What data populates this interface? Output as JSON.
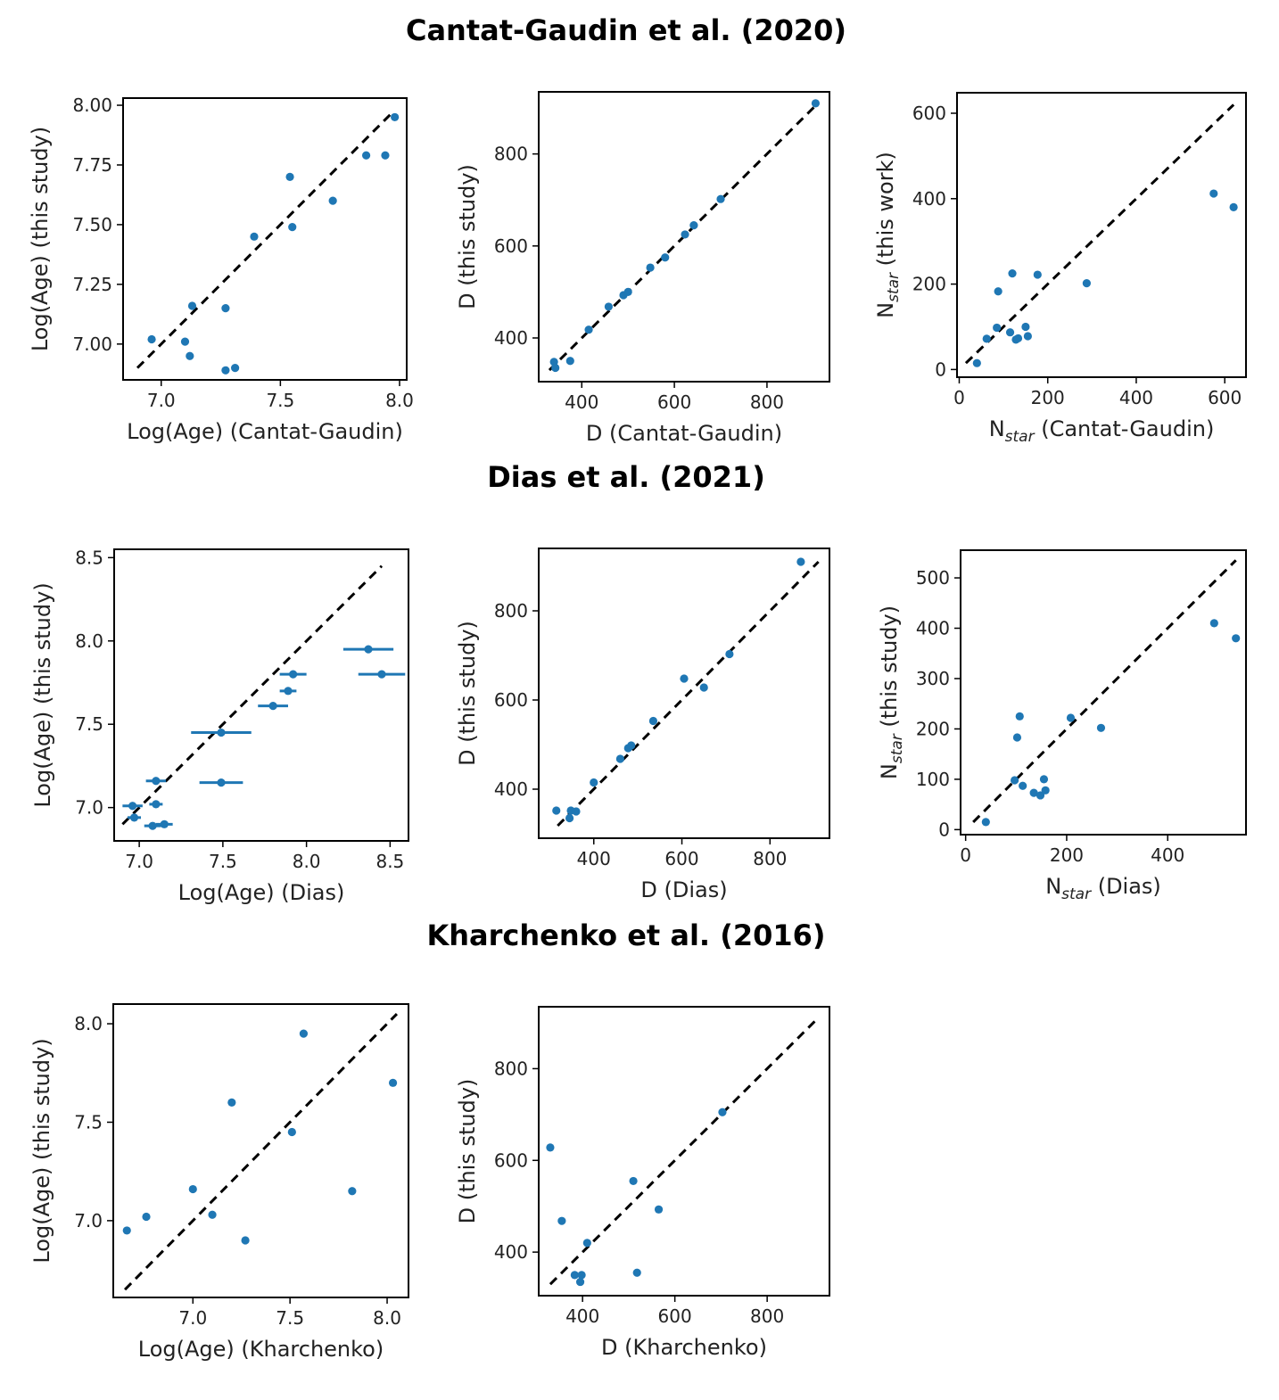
{
  "row_titles": [
    "Cantat-Gaudin et al. (2020)",
    "Dias et al. (2021)",
    "Kharchenko et al. (2016)"
  ],
  "colors": {
    "points": "#1f77b4",
    "reference_line": "#000000"
  },
  "chart_data": [
    {
      "id": "cg-age",
      "type": "scatter",
      "xlabel": "Log(Age) (Cantat-Gaudin)",
      "ylabel": "Log(Age) (this study)",
      "xlim": [
        6.84,
        8.03
      ],
      "ylim": [
        6.85,
        8.03
      ],
      "xticks": [
        7.0,
        7.5,
        8.0
      ],
      "xtick_labels": [
        "7.0",
        "7.5",
        "8.0"
      ],
      "yticks": [
        7.0,
        7.25,
        7.5,
        7.75,
        8.0
      ],
      "ytick_labels": [
        "7.00",
        "7.25",
        "7.50",
        "7.75",
        "8.00"
      ],
      "reference_line": [
        [
          6.9,
          6.9
        ],
        [
          7.97,
          7.97
        ]
      ],
      "x": [
        6.96,
        7.1,
        7.12,
        7.13,
        7.27,
        7.27,
        7.31,
        7.39,
        7.54,
        7.55,
        7.72,
        7.86,
        7.94,
        7.98
      ],
      "y": [
        7.02,
        7.01,
        6.95,
        7.16,
        7.15,
        6.89,
        6.9,
        7.45,
        7.7,
        7.49,
        7.6,
        7.79,
        7.79,
        7.95
      ]
    },
    {
      "id": "cg-dist",
      "type": "scatter",
      "xlabel": "D (Cantat-Gaudin)",
      "ylabel": "D (this study)",
      "xlim": [
        307,
        935
      ],
      "ylim": [
        305,
        935
      ],
      "xticks": [
        400,
        600,
        800
      ],
      "xtick_labels": [
        "400",
        "600",
        "800"
      ],
      "yticks": [
        400,
        600,
        800
      ],
      "ytick_labels": [
        "400",
        "600",
        "800"
      ],
      "reference_line": [
        [
          330,
          330
        ],
        [
          910,
          910
        ]
      ],
      "x": [
        340,
        343,
        375,
        415,
        458,
        490,
        500,
        548,
        580,
        623,
        642,
        700,
        905
      ],
      "y": [
        348,
        335,
        350,
        418,
        468,
        493,
        500,
        553,
        575,
        625,
        645,
        702,
        910
      ]
    },
    {
      "id": "cg-nstar",
      "type": "scatter",
      "xlabel": "Nstar (Cantat-Gaudin)",
      "ylabel": "Nstar (this work)",
      "xlim": [
        -5,
        648
      ],
      "ylim": [
        -18,
        648
      ],
      "xticks": [
        0,
        200,
        400,
        600
      ],
      "xtick_labels": [
        "0",
        "200",
        "400",
        "600"
      ],
      "yticks": [
        0,
        200,
        400,
        600
      ],
      "ytick_labels": [
        "0",
        "200",
        "400",
        "600"
      ],
      "reference_line": [
        [
          15,
          15
        ],
        [
          620,
          620
        ]
      ],
      "x": [
        40,
        62,
        85,
        88,
        115,
        120,
        128,
        133,
        150,
        155,
        177,
        288,
        575,
        620
      ],
      "y": [
        15,
        72,
        98,
        183,
        87,
        225,
        70,
        73,
        100,
        78,
        222,
        202,
        412,
        380
      ]
    },
    {
      "id": "dias-age",
      "type": "scatter",
      "xlabel": "Log(Age) (Dias)",
      "ylabel": "Log(Age) (this study)",
      "xlim": [
        6.85,
        8.61
      ],
      "ylim": [
        6.8,
        8.55
      ],
      "xticks": [
        7.0,
        7.5,
        8.0,
        8.5
      ],
      "xtick_labels": [
        "7.0",
        "7.5",
        "8.0",
        "8.5"
      ],
      "yticks": [
        7.0,
        7.5,
        8.0,
        8.5
      ],
      "ytick_labels": [
        "7.0",
        "7.5",
        "8.0",
        "8.5"
      ],
      "reference_line": [
        [
          6.9,
          6.9
        ],
        [
          8.45,
          8.45
        ]
      ],
      "x": [
        6.96,
        6.97,
        7.08,
        7.1,
        7.1,
        7.15,
        7.49,
        7.49,
        7.8,
        7.89,
        7.92,
        8.37,
        8.45
      ],
      "y": [
        7.01,
        6.94,
        6.89,
        7.02,
        7.16,
        6.9,
        7.45,
        7.15,
        7.61,
        7.7,
        7.8,
        7.95,
        7.8
      ],
      "xerr": [
        0.06,
        0.04,
        0.05,
        0.04,
        0.06,
        0.05,
        0.18,
        0.13,
        0.09,
        0.05,
        0.08,
        0.15,
        0.14
      ]
    },
    {
      "id": "dias-dist",
      "type": "scatter",
      "xlabel": "D (Dias)",
      "ylabel": "D (this study)",
      "xlim": [
        275,
        935
      ],
      "ylim": [
        290,
        940
      ],
      "xticks": [
        400,
        600,
        800
      ],
      "xtick_labels": [
        "400",
        "600",
        "800"
      ],
      "yticks": [
        400,
        600,
        800
      ],
      "ytick_labels": [
        "400",
        "600",
        "800"
      ],
      "reference_line": [
        [
          318,
          318
        ],
        [
          910,
          910
        ]
      ],
      "x": [
        315,
        345,
        348,
        360,
        400,
        460,
        478,
        485,
        535,
        605,
        650,
        708,
        870
      ],
      "y": [
        352,
        335,
        352,
        350,
        415,
        468,
        492,
        498,
        553,
        648,
        628,
        703,
        910
      ]
    },
    {
      "id": "dias-nstar",
      "type": "scatter",
      "xlabel": "Nstar (Dias)",
      "ylabel": "Nstar (this study)",
      "xlim": [
        -10,
        555
      ],
      "ylim": [
        -10,
        555
      ],
      "xticks": [
        0,
        200,
        400
      ],
      "xtick_labels": [
        "0",
        "200",
        "400"
      ],
      "yticks": [
        0,
        100,
        200,
        300,
        400,
        500
      ],
      "ytick_labels": [
        "0",
        "100",
        "200",
        "300",
        "400",
        "500"
      ],
      "reference_line": [
        [
          15,
          15
        ],
        [
          535,
          535
        ]
      ],
      "x": [
        40,
        97,
        102,
        107,
        113,
        135,
        148,
        155,
        158,
        208,
        268,
        492,
        535
      ],
      "y": [
        15,
        98,
        183,
        225,
        87,
        73,
        68,
        100,
        78,
        222,
        202,
        410,
        380
      ]
    },
    {
      "id": "kh-age",
      "type": "scatter",
      "xlabel": "Log(Age) (Kharchenko)",
      "ylabel": "Log(Age) (this study)",
      "xlim": [
        6.59,
        8.11
      ],
      "ylim": [
        6.61,
        8.1
      ],
      "xticks": [
        7.0,
        7.5,
        8.0
      ],
      "xtick_labels": [
        "7.0",
        "7.5",
        "8.0"
      ],
      "yticks": [
        7.0,
        7.5,
        8.0
      ],
      "ytick_labels": [
        "7.0",
        "7.5",
        "8.0"
      ],
      "reference_line": [
        [
          6.65,
          6.65
        ],
        [
          8.05,
          8.05
        ]
      ],
      "x": [
        6.66,
        6.76,
        7.0,
        7.1,
        7.2,
        7.27,
        7.51,
        7.57,
        7.82,
        8.03
      ],
      "y": [
        6.95,
        7.02,
        7.16,
        7.03,
        7.6,
        6.9,
        7.45,
        7.95,
        7.15,
        7.7
      ]
    },
    {
      "id": "kh-dist",
      "type": "scatter",
      "xlabel": "D (Kharchenko)",
      "ylabel": "D (this study)",
      "xlim": [
        305,
        935
      ],
      "ylim": [
        305,
        935
      ],
      "xticks": [
        400,
        600,
        800
      ],
      "xtick_labels": [
        "400",
        "600",
        "800"
      ],
      "yticks": [
        400,
        600,
        800
      ],
      "ytick_labels": [
        "400",
        "600",
        "800"
      ],
      "reference_line": [
        [
          330,
          330
        ],
        [
          910,
          910
        ]
      ],
      "x": [
        330,
        355,
        383,
        395,
        398,
        410,
        510,
        518,
        565,
        703
      ],
      "y": [
        628,
        468,
        350,
        335,
        350,
        420,
        555,
        355,
        493,
        705
      ]
    }
  ]
}
